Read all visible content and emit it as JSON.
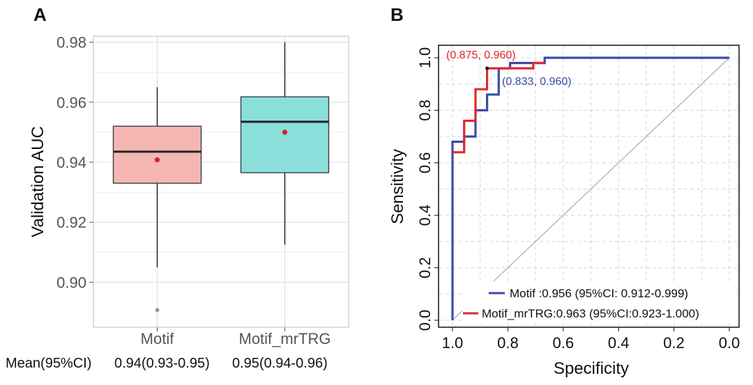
{
  "chart_data": [
    {
      "panel": "A",
      "type": "box",
      "ylabel": "Validation AUC",
      "xlabel": "",
      "ylim": [
        0.885,
        0.982
      ],
      "yticks": [
        0.9,
        0.92,
        0.94,
        0.96,
        0.98
      ],
      "ytick_labels": [
        "0.90",
        "0.92",
        "0.94",
        "0.96",
        "0.98"
      ],
      "grid": true,
      "boxes": [
        {
          "name": "Motif",
          "color": "#F4B6B3",
          "whisker_low": 0.905,
          "q1": 0.933,
          "median": 0.9435,
          "q3": 0.952,
          "whisker_high": 0.965,
          "mean": 0.9408,
          "outliers": [
            0.8907
          ]
        },
        {
          "name": "Motif_mrTRG",
          "color": "#8ADFDB",
          "whisker_low": 0.9125,
          "q1": 0.9365,
          "median": 0.9535,
          "q3": 0.9618,
          "whisker_high": 0.98,
          "mean": 0.95,
          "outliers": []
        }
      ],
      "mean_ci_label": "Mean(95%CI)",
      "mean_ci_values": [
        "0.94(0.93-0.95)",
        "0.95(0.94-0.96)"
      ]
    },
    {
      "panel": "B",
      "type": "line",
      "xlabel": "Specificity",
      "ylabel": "Sensitivity",
      "xlim": [
        1.0,
        0.0
      ],
      "ylim": [
        0.0,
        1.0
      ],
      "xticks": [
        1.0,
        0.8,
        0.6,
        0.4,
        0.2,
        0.0
      ],
      "xtick_labels": [
        "1.0",
        "0.8",
        "0.6",
        "0.4",
        "0.2",
        "0.0"
      ],
      "yticks": [
        0.0,
        0.2,
        0.4,
        0.6,
        0.8,
        1.0
      ],
      "ytick_labels": [
        "0.0",
        "0.2",
        "0.4",
        "0.6",
        "0.8",
        "1.0"
      ],
      "grid": true,
      "series": [
        {
          "name": "Motif",
          "color": "#3B4BA6",
          "points": [
            [
              1.0,
              0.0
            ],
            [
              1.0,
              0.68
            ],
            [
              0.958,
              0.68
            ],
            [
              0.958,
              0.7
            ],
            [
              0.917,
              0.7
            ],
            [
              0.917,
              0.8
            ],
            [
              0.875,
              0.8
            ],
            [
              0.875,
              0.86
            ],
            [
              0.833,
              0.86
            ],
            [
              0.833,
              0.96
            ],
            [
              0.792,
              0.96
            ],
            [
              0.792,
              0.98
            ],
            [
              0.667,
              0.98
            ],
            [
              0.667,
              1.0
            ],
            [
              0.0,
              1.0
            ]
          ]
        },
        {
          "name": "Motif_mrTRG",
          "color": "#E0282E",
          "points": [
            [
              1.0,
              0.64
            ],
            [
              0.958,
              0.64
            ],
            [
              0.958,
              0.76
            ],
            [
              0.917,
              0.76
            ],
            [
              0.917,
              0.88
            ],
            [
              0.875,
              0.88
            ],
            [
              0.875,
              0.96
            ],
            [
              0.708,
              0.96
            ],
            [
              0.708,
              0.98
            ],
            [
              0.667,
              0.98
            ]
          ]
        }
      ],
      "diagonal": [
        [
          1.0,
          0.0
        ],
        [
          0.0,
          1.0
        ]
      ],
      "annotations": [
        {
          "text": "(0.875, 0.960)",
          "color": "#E0282E",
          "x": 0.875,
          "y": 0.96
        },
        {
          "text": "(0.833, 0.960)",
          "color": "#3B4BA6",
          "x": 0.833,
          "y": 0.96
        }
      ],
      "legend": [
        {
          "label": "Motif :0.956 (95%CI: 0.912-0.999)",
          "color": "#3B4BA6"
        },
        {
          "label": "Motif_mrTRG:0.963 (95%CI:0.923-1.000)",
          "color": "#E0282E"
        }
      ],
      "legend_position": "bottom-right"
    }
  ],
  "panel_labels": {
    "a": "A",
    "b": "B"
  }
}
